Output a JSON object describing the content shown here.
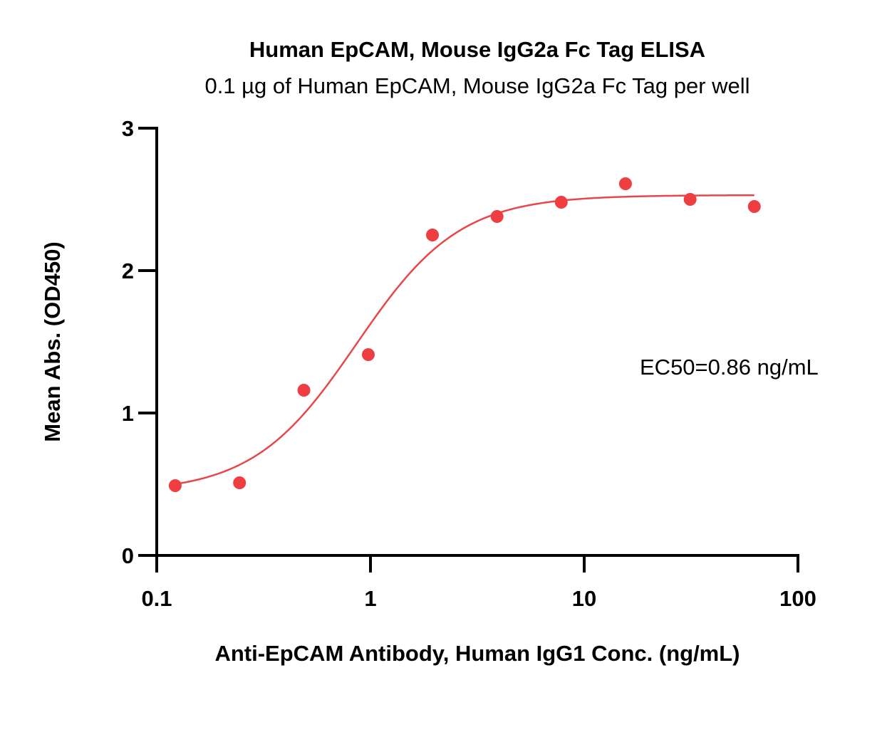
{
  "chart_data": {
    "type": "scatter",
    "title": "Human EpCAM, Mouse IgG2a Fc Tag ELISA",
    "subtitle": "0.1 µg of Human EpCAM, Mouse IgG2a Fc Tag per well",
    "xlabel": "Anti-EpCAM Antibody, Human IgG1 Conc. (ng/mL)",
    "ylabel": "Mean Abs. (OD450)",
    "x_scale": "log",
    "xlim": [
      0.1,
      100
    ],
    "ylim": [
      0,
      3
    ],
    "x_ticks": [
      "0.1",
      "1",
      "10",
      "100"
    ],
    "y_ticks": [
      "0",
      "1",
      "2",
      "3"
    ],
    "grid": false,
    "annotation": "EC50=0.86 ng/mL",
    "colors": {
      "series": "#ee3e42",
      "curve": "#e8474a",
      "axis": "#000000"
    },
    "series": [
      {
        "x": [
          0.122,
          0.244,
          0.488,
          0.977,
          1.95,
          3.91,
          7.81,
          15.6,
          31.3,
          62.5
        ],
        "y": [
          0.49,
          0.51,
          1.16,
          1.41,
          2.25,
          2.38,
          2.48,
          2.61,
          2.5,
          2.45
        ]
      }
    ],
    "fit": {
      "model": "4PL",
      "bottom": 0.44,
      "top": 2.53,
      "ec50": 0.86,
      "hill": 1.8,
      "x_range": [
        0.122,
        62.5
      ]
    }
  }
}
